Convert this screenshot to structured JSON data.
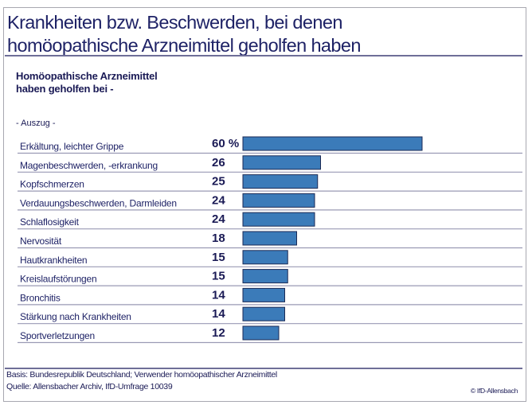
{
  "title_line1": "Krankheiten bzw. Beschwerden, bei denen",
  "title_line2": "homöopathische Arzneimittel geholfen haben",
  "subtitle_line1": "Homöopathische Arzneimittel",
  "subtitle_line2": "haben geholfen bei -",
  "excerpt_note": "- Auszug -",
  "footer": {
    "basis": "Basis: Bundesrepublik Deutschland; Verwender homöopathischer Arzneimittel",
    "source": "Quelle: Allensbacher Archiv, IfD-Umfrage 10039",
    "copyright": "© IfD-Allensbach"
  },
  "chart_data": {
    "type": "bar",
    "orientation": "horizontal",
    "unit": "%",
    "categories": [
      "Erkältung, leichter Grippe",
      "Magenbeschwerden, -erkrankung",
      "Kopfschmerzen",
      "Verdauungsbeschwerden, Darmleiden",
      "Schlaflosigkeit",
      "Nervosität",
      "Hautkrankheiten",
      "Kreislaufstörungen",
      "Bronchitis",
      "Stärkung nach Krankheiten",
      "Sportverletzungen"
    ],
    "values": [
      60,
      26,
      25,
      24,
      24,
      18,
      15,
      15,
      14,
      14,
      12
    ],
    "value_labels": [
      "60 %",
      "26",
      "25",
      "24",
      "24",
      "18",
      "15",
      "15",
      "14",
      "14",
      "12"
    ],
    "xlim": [
      0,
      100
    ],
    "grid": false,
    "bar_color": "#3b7bb9",
    "bar_border_color": "#1b2a55"
  }
}
